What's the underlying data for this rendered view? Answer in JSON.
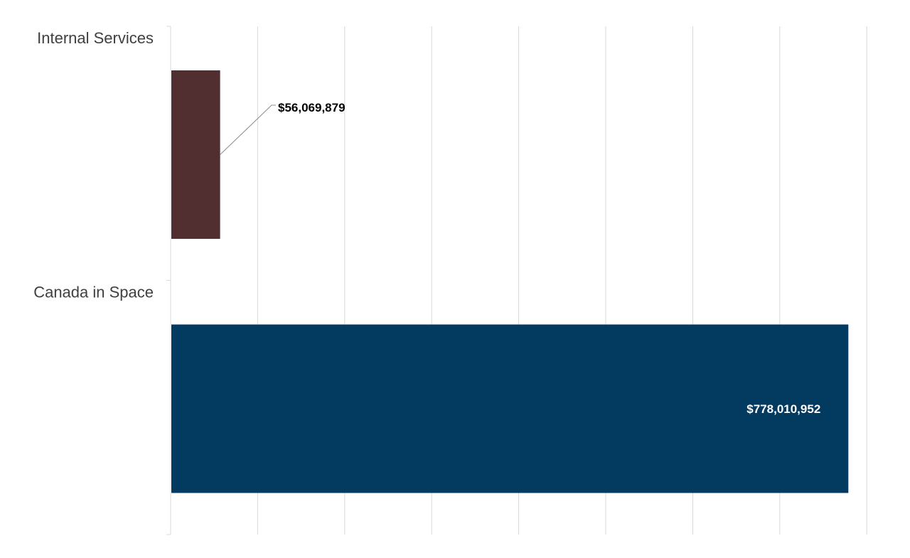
{
  "chart_data": {
    "type": "bar",
    "orientation": "horizontal",
    "categories": [
      "Internal Services",
      "Canada in Space"
    ],
    "values": [
      56069879,
      778010952
    ],
    "value_labels": [
      "$56,069,879",
      "$778,010,952"
    ],
    "bar_colors": [
      "#512e2f",
      "#033a60"
    ],
    "label_colors": [
      "#000000",
      "#ffffff"
    ],
    "xlim": [
      0,
      800000000
    ],
    "x_gridline_step": 100000000,
    "grid": true,
    "legend": "none"
  }
}
